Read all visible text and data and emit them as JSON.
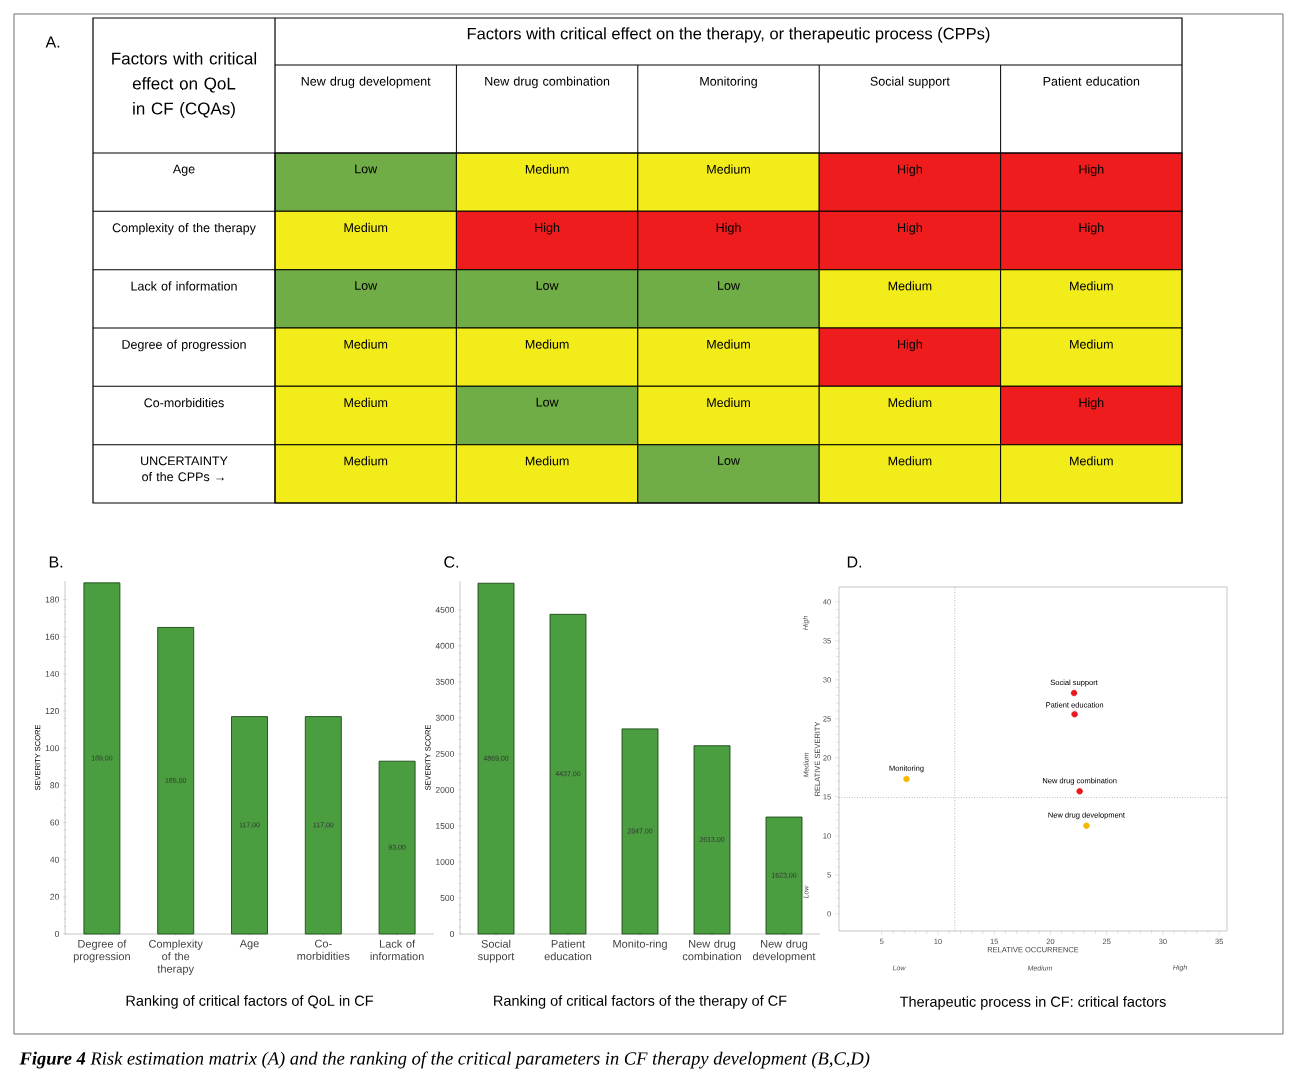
{
  "chart_data": [
    {
      "type": "other",
      "title": "Factors with critical effect on the therapy, or therapeutic process (CPPs)",
      "ylabel": "Factors with critical effect on QoL in CF (CQAs)",
      "annotations": [
        "A.",
        "**Figure 4** Risk estimation matrix (A) and the ranking of the critical parameters in CF therapy development (B,C,D)"
      ],
      "categories": [
        "New drug development",
        "New drug combination",
        "Monitoring",
        "Social support",
        "Patient education"
      ],
      "y_categories": [
        "Age",
        "Complexity of the therapy",
        "Lack of information",
        "Degree of progression",
        "Co-morbidities",
        "UNCERTAINTY of the CPPs →"
      ],
      "colors": [
        [
          "#70ad47",
          "#f2ec1a",
          "#f2ec1a",
          "#ee1c1c",
          "#ee1c1c"
        ],
        [
          "#f2ec1a",
          "#ee1c1c",
          "#ee1c1c",
          "#ee1c1c",
          "#ee1c1c"
        ],
        [
          "#70ad47",
          "#70ad47",
          "#70ad47",
          "#f2ec1a",
          "#f2ec1a"
        ],
        [
          "#f2ec1a",
          "#f2ec1a",
          "#f2ec1a",
          "#ee1c1c",
          "#f2ec1a"
        ],
        [
          "#f2ec1a",
          "#70ad47",
          "#f2ec1a",
          "#f2ec1a",
          "#ee1c1c"
        ],
        [
          "#f2ec1a",
          "#f2ec1a",
          "#70ad47",
          "#f2ec1a",
          "#f2ec1a"
        ]
      ],
      "cells": [
        [
          "Low",
          "Medium",
          "Medium",
          "High",
          "High"
        ],
        [
          "Medium",
          "High",
          "High",
          "High",
          "High"
        ],
        [
          "Low",
          "Low",
          "Low",
          "Medium",
          "Medium"
        ],
        [
          "Medium",
          "Medium",
          "Medium",
          "High",
          "Medium"
        ],
        [
          "Medium",
          "Low",
          "Medium",
          "Medium",
          "High"
        ],
        [
          "Medium",
          "Medium",
          "Low",
          "Medium",
          "Medium"
        ]
      ]
    },
    {
      "type": "bar",
      "title": "Ranking of critical factors  of  QoL in CF",
      "ylabel": "SEVERITY SCORE",
      "annotations": [
        "B."
      ],
      "categories": [
        "Degree of progression",
        "Complexity of the therapy",
        "Age",
        "Co-morbidities",
        "Lack of information"
      ],
      "values": [
        189,
        165,
        117,
        117,
        93
      ],
      "value_labels": [
        "189,00",
        "165,00",
        "117,00",
        "117,00",
        "93,00"
      ],
      "color": "#4a9e40",
      "ylim": [
        0,
        190
      ],
      "yticks": [
        0,
        20,
        40,
        60,
        80,
        100,
        120,
        140,
        160,
        180
      ]
    },
    {
      "type": "bar",
      "title": "Ranking of critical factors of the therapy of CF",
      "ylabel": "SEVERITY SCORE",
      "annotations": [
        "C."
      ],
      "categories": [
        "Social support",
        "Patient education",
        "Monito-ring",
        "New drug combination",
        "New drug development"
      ],
      "values": [
        4869,
        4437,
        2847,
        2613,
        1623
      ],
      "value_labels": [
        "4869,00",
        "4437,00",
        "2847,00",
        "2613,00",
        "1623,00"
      ],
      "color": "#4a9e40",
      "ylim": [
        0,
        4900
      ],
      "yticks": [
        0,
        500,
        1000,
        1500,
        2000,
        2500,
        3000,
        3500,
        4000,
        4500
      ]
    },
    {
      "type": "scatter",
      "title": "Therapeutic process in CF: critical factors",
      "xlabel": "RELATIVE OCCURRENCE",
      "ylabel": "RELATIVE SEVERITY",
      "annotations": [
        "D.",
        "Low",
        "Medium",
        "High",
        "Low",
        "Medium",
        "High",
        {
          "text": "Social support",
          "x": 22.1,
          "y": 28.3
        },
        {
          "text": "Patient education",
          "x": 22.15,
          "y": 25.6
        },
        {
          "text": "Monitoring",
          "x": 7.2,
          "y": 17.3
        },
        {
          "text": "New drug combination",
          "x": 22.6,
          "y": 15.7
        },
        {
          "text": "New drug development",
          "x": 23.2,
          "y": 11.3
        }
      ],
      "series": [
        {
          "color": "#e8191e",
          "x": [
            22.1,
            22.15,
            22.6
          ],
          "values": [
            28.3,
            25.6,
            15.7
          ]
        },
        {
          "color": "#f5b800",
          "x": [
            7.2,
            23.2
          ],
          "values": [
            17.3,
            11.3
          ]
        }
      ],
      "marker": "circle",
      "ref_lines": [
        {
          "axis": "x",
          "value": 11.5,
          "line_style": "dotted"
        },
        {
          "axis": "y",
          "value": 14.9,
          "line_style": "dotted"
        }
      ],
      "xlim": [
        1.2,
        35.7
      ],
      "ylim": [
        -2.2,
        41.9
      ],
      "xticks": [
        5,
        10,
        15,
        20,
        25,
        30,
        35
      ],
      "yticks": [
        0,
        5,
        10,
        15,
        20,
        25,
        30,
        35,
        40
      ]
    }
  ]
}
